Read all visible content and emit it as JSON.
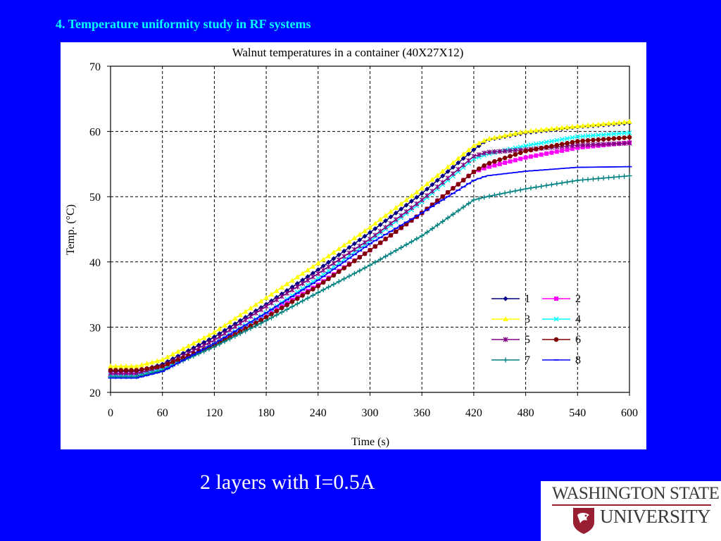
{
  "slide": {
    "title": "4. Temperature uniformity study in RF systems",
    "caption": "2 layers with I=0.5A",
    "logo": {
      "line1": "WASHINGTON STATE",
      "line2": "UNIVERSITY",
      "icon": "wsu-cougar-shield-icon"
    }
  },
  "colors": {
    "background": "#0000ff",
    "title": "#00ffff",
    "caption": "#ffffff",
    "logo_crimson": "#981e32"
  },
  "chart_data": {
    "type": "line",
    "title": "Walnut temperatures in a container (40X27X12)",
    "xlabel": "Time (s)",
    "ylabel": "Temp. (°C)",
    "xlim": [
      0,
      600
    ],
    "ylim": [
      20,
      70
    ],
    "xticks": [
      0,
      60,
      120,
      180,
      240,
      300,
      360,
      420,
      480,
      540,
      600
    ],
    "yticks": [
      20,
      30,
      40,
      50,
      60,
      70
    ],
    "grid": true,
    "legend_position": "lower-right",
    "series": [
      {
        "name": "1",
        "color": "#000080",
        "marker": "diamond",
        "points": [
          [
            0,
            23.2
          ],
          [
            30,
            23.2
          ],
          [
            60,
            24.3
          ],
          [
            120,
            28.5
          ],
          [
            180,
            33.5
          ],
          [
            240,
            38.8
          ],
          [
            300,
            44.5
          ],
          [
            360,
            50.5
          ],
          [
            420,
            57.2
          ],
          [
            435,
            58.7
          ],
          [
            480,
            59.8
          ],
          [
            540,
            60.7
          ],
          [
            600,
            61.3
          ]
        ]
      },
      {
        "name": "2",
        "color": "#ff00ff",
        "marker": "square",
        "points": [
          [
            0,
            22.8
          ],
          [
            30,
            22.8
          ],
          [
            60,
            23.8
          ],
          [
            120,
            27.2
          ],
          [
            180,
            31.8
          ],
          [
            240,
            36.5
          ],
          [
            300,
            41.8
          ],
          [
            360,
            47.5
          ],
          [
            420,
            53.8
          ],
          [
            435,
            54.5
          ],
          [
            480,
            56.0
          ],
          [
            540,
            57.5
          ],
          [
            600,
            58.3
          ]
        ]
      },
      {
        "name": "3",
        "color": "#ffff00",
        "marker": "triangle",
        "points": [
          [
            0,
            24.0
          ],
          [
            30,
            24.0
          ],
          [
            60,
            25.0
          ],
          [
            120,
            29.2
          ],
          [
            180,
            34.5
          ],
          [
            240,
            39.8
          ],
          [
            300,
            45.3
          ],
          [
            360,
            51.3
          ],
          [
            420,
            57.8
          ],
          [
            435,
            58.8
          ],
          [
            480,
            60.0
          ],
          [
            540,
            60.8
          ],
          [
            600,
            61.5
          ]
        ]
      },
      {
        "name": "4",
        "color": "#00ffff",
        "marker": "x",
        "points": [
          [
            0,
            22.6
          ],
          [
            30,
            22.6
          ],
          [
            60,
            23.6
          ],
          [
            120,
            27.5
          ],
          [
            180,
            32.2
          ],
          [
            240,
            37.5
          ],
          [
            300,
            43.2
          ],
          [
            360,
            49.2
          ],
          [
            420,
            55.8
          ],
          [
            435,
            56.5
          ],
          [
            480,
            57.8
          ],
          [
            540,
            59.2
          ],
          [
            600,
            59.8
          ]
        ]
      },
      {
        "name": "5",
        "color": "#800080",
        "marker": "star",
        "points": [
          [
            0,
            22.9
          ],
          [
            30,
            22.9
          ],
          [
            60,
            24.0
          ],
          [
            120,
            28.0
          ],
          [
            180,
            33.2
          ],
          [
            240,
            38.2
          ],
          [
            300,
            43.5
          ],
          [
            360,
            49.5
          ],
          [
            420,
            56.2
          ],
          [
            435,
            56.8
          ],
          [
            480,
            57.2
          ],
          [
            540,
            57.9
          ],
          [
            600,
            58.2
          ]
        ]
      },
      {
        "name": "6",
        "color": "#800000",
        "marker": "circle",
        "points": [
          [
            0,
            23.4
          ],
          [
            30,
            23.4
          ],
          [
            60,
            24.0
          ],
          [
            120,
            27.2
          ],
          [
            180,
            31.5
          ],
          [
            240,
            36.3
          ],
          [
            300,
            41.8
          ],
          [
            360,
            47.5
          ],
          [
            420,
            53.8
          ],
          [
            435,
            55.0
          ],
          [
            480,
            57.0
          ],
          [
            540,
            58.5
          ],
          [
            600,
            59.1
          ]
        ]
      },
      {
        "name": "7",
        "color": "#008080",
        "marker": "plus",
        "points": [
          [
            0,
            22.4
          ],
          [
            30,
            22.4
          ],
          [
            60,
            23.4
          ],
          [
            120,
            27.0
          ],
          [
            180,
            31.0
          ],
          [
            240,
            35.3
          ],
          [
            300,
            39.5
          ],
          [
            360,
            44.0
          ],
          [
            420,
            49.5
          ],
          [
            435,
            50.0
          ],
          [
            480,
            51.2
          ],
          [
            540,
            52.5
          ],
          [
            600,
            53.2
          ]
        ]
      },
      {
        "name": "8",
        "color": "#0000ff",
        "marker": "dash",
        "points": [
          [
            0,
            22.2
          ],
          [
            30,
            22.2
          ],
          [
            60,
            23.2
          ],
          [
            120,
            27.5
          ],
          [
            180,
            32.2
          ],
          [
            240,
            37.2
          ],
          [
            300,
            42.8
          ],
          [
            360,
            47.5
          ],
          [
            420,
            52.5
          ],
          [
            435,
            53.2
          ],
          [
            480,
            53.9
          ],
          [
            540,
            54.5
          ],
          [
            600,
            54.6
          ]
        ]
      }
    ]
  }
}
